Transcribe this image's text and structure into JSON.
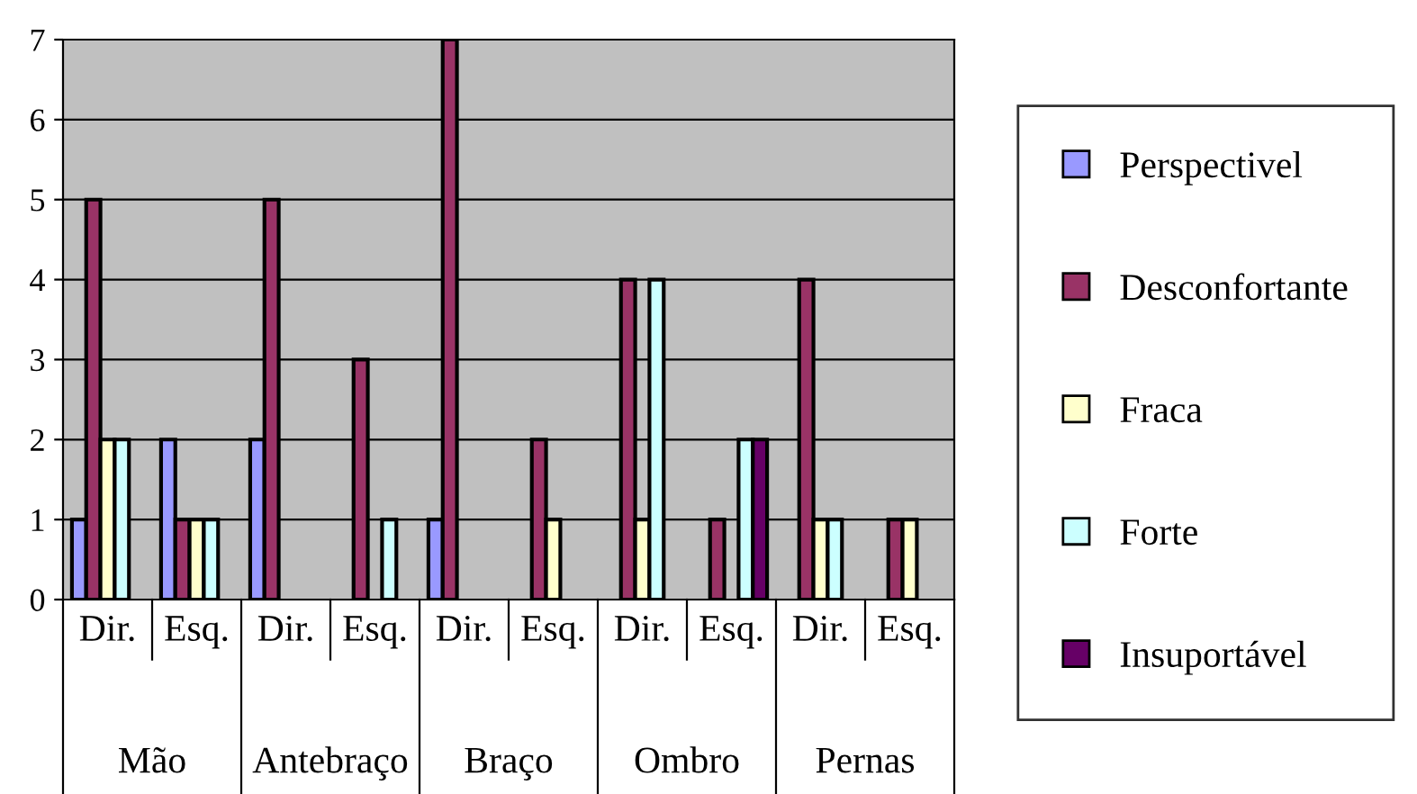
{
  "chart_data": {
    "type": "bar",
    "categories": [
      "Dir.",
      "Esq.",
      "Dir.",
      "Esq.",
      "Dir.",
      "Esq.",
      "Dir.",
      "Esq.",
      "Dir.",
      "Esq."
    ],
    "series": [
      {
        "name": "Perspectivel",
        "color": "#9999ff",
        "values": [
          1,
          2,
          2,
          null,
          1,
          null,
          null,
          null,
          null,
          null
        ]
      },
      {
        "name": "Desconfortante",
        "color": "#993366",
        "values": [
          5,
          1,
          5,
          3,
          7,
          2,
          4,
          1,
          4,
          1
        ]
      },
      {
        "name": "Fraca",
        "color": "#ffffcc",
        "values": [
          2,
          1,
          null,
          null,
          null,
          1,
          1,
          null,
          1,
          1
        ]
      },
      {
        "name": "Forte",
        "color": "#ccffff",
        "values": [
          2,
          1,
          null,
          1,
          null,
          null,
          4,
          2,
          1,
          null
        ]
      },
      {
        "name": "Insuportável",
        "color": "#660066",
        "values": [
          null,
          null,
          null,
          null,
          null,
          null,
          null,
          2,
          null,
          null
        ]
      }
    ],
    "annotations": [
      "Mão",
      "Antebraço",
      "Braço",
      "Ombro",
      "Pernas"
    ],
    "ylim": [
      0,
      7
    ],
    "yticks": [
      0,
      1,
      2,
      3,
      4,
      5,
      6,
      7
    ],
    "grid": "y",
    "legend": "right"
  }
}
